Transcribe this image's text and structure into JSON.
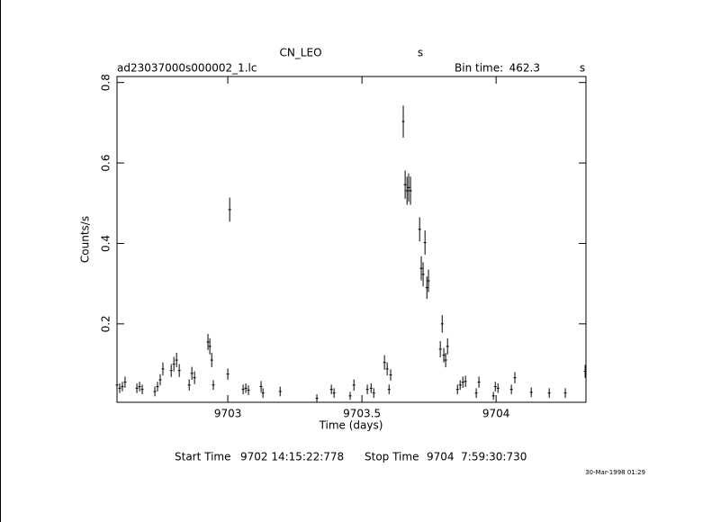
{
  "chart_data": {
    "type": "errorbar",
    "title": "CN_LEO",
    "title_unit": "s",
    "file": "ad23037000s000002_1.lc",
    "bin_time_label": "Bin time:",
    "bin_time": "462.3",
    "bin_time_unit": "s",
    "xlabel": "Time (days)",
    "ylabel": "Counts/s",
    "start_label": "Start Time",
    "start": "9702 14:15:22:778",
    "stop_label": "Stop Time",
    "stop": "9704  7:59:30:730",
    "timestamp": "30-Mar-1998 01:29",
    "color": "#000000",
    "xlim": [
      9702.587,
      9704.335
    ],
    "ylim": [
      0.005,
      0.815
    ],
    "xticks": [
      9703,
      9703.5,
      9704
    ],
    "yticks": [
      0.2,
      0.4,
      0.6,
      0.8
    ],
    "x": [
      9702.587,
      9702.597,
      9702.607,
      9702.617,
      9702.661,
      9702.671,
      9702.681,
      9702.728,
      9702.738,
      9702.748,
      9702.758,
      9702.789,
      9702.799,
      9702.809,
      9702.819,
      9702.856,
      9702.866,
      9702.876,
      9702.926,
      9702.933,
      9702.94,
      9702.946,
      9703.0,
      9703.007,
      9703.057,
      9703.067,
      9703.077,
      9703.124,
      9703.131,
      9703.195,
      9703.332,
      9703.386,
      9703.396,
      9703.456,
      9703.47,
      9703.52,
      9703.534,
      9703.544,
      9703.584,
      9703.594,
      9703.601,
      9703.607,
      9703.654,
      9703.661,
      9703.668,
      9703.674,
      9703.681,
      9703.715,
      9703.721,
      9703.728,
      9703.735,
      9703.742,
      9703.748,
      9703.792,
      9703.799,
      9703.805,
      9703.812,
      9703.819,
      9703.856,
      9703.866,
      9703.876,
      9703.886,
      9703.926,
      9703.936,
      9703.99,
      9703.997,
      9704.007,
      9704.057,
      9704.07,
      9704.131,
      9704.198,
      9704.258,
      9704.332
    ],
    "values": [
      0.048,
      0.04,
      0.044,
      0.055,
      0.04,
      0.044,
      0.037,
      0.032,
      0.044,
      0.061,
      0.088,
      0.084,
      0.1,
      0.11,
      0.084,
      0.048,
      0.077,
      0.066,
      0.155,
      0.144,
      0.11,
      0.048,
      0.075,
      0.484,
      0.037,
      0.04,
      0.035,
      0.044,
      0.028,
      0.032,
      0.015,
      0.037,
      0.028,
      0.021,
      0.048,
      0.037,
      0.04,
      0.028,
      0.104,
      0.088,
      0.037,
      0.073,
      0.703,
      0.546,
      0.531,
      0.539,
      0.531,
      0.435,
      0.338,
      0.323,
      0.402,
      0.29,
      0.307,
      0.137,
      0.2,
      0.122,
      0.11,
      0.144,
      0.037,
      0.048,
      0.055,
      0.057,
      0.028,
      0.055,
      0.021,
      0.044,
      0.04,
      0.037,
      0.066,
      0.03,
      0.028,
      0.028,
      0.082
    ],
    "errors": [
      0.014,
      0.012,
      0.012,
      0.014,
      0.012,
      0.012,
      0.012,
      0.012,
      0.012,
      0.014,
      0.016,
      0.016,
      0.018,
      0.018,
      0.016,
      0.014,
      0.016,
      0.016,
      0.02,
      0.02,
      0.018,
      0.012,
      0.014,
      0.03,
      0.012,
      0.012,
      0.012,
      0.014,
      0.012,
      0.012,
      0.01,
      0.012,
      0.012,
      0.01,
      0.014,
      0.012,
      0.012,
      0.012,
      0.018,
      0.016,
      0.012,
      0.014,
      0.04,
      0.035,
      0.035,
      0.035,
      0.035,
      0.03,
      0.03,
      0.03,
      0.03,
      0.028,
      0.028,
      0.02,
      0.022,
      0.018,
      0.018,
      0.02,
      0.012,
      0.012,
      0.014,
      0.014,
      0.012,
      0.014,
      0.01,
      0.012,
      0.012,
      0.012,
      0.014,
      0.012,
      0.012,
      0.012,
      0.016
    ]
  }
}
